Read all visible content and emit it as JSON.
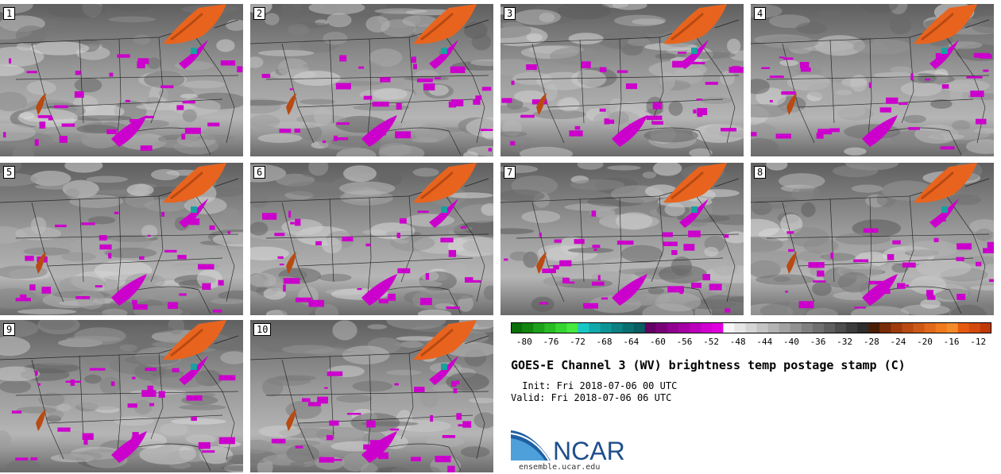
{
  "panels": [
    {
      "label": "1"
    },
    {
      "label": "2"
    },
    {
      "label": "3"
    },
    {
      "label": "4"
    },
    {
      "label": "5"
    },
    {
      "label": "6"
    },
    {
      "label": "7"
    },
    {
      "label": "8"
    },
    {
      "label": "9"
    },
    {
      "label": "10"
    }
  ],
  "colorbar": {
    "tick_labels": [
      "-80",
      "-76",
      "-72",
      "-68",
      "-64",
      "-60",
      "-56",
      "-52",
      "-48",
      "-44",
      "-40",
      "-36",
      "-32",
      "-28",
      "-24",
      "-20",
      "-16",
      "-12"
    ],
    "colors": [
      "#0a6e0a",
      "#12850f",
      "#1da01a",
      "#28bb24",
      "#37d531",
      "#47e83f",
      "#19c6c6",
      "#12a9aa",
      "#0e9396",
      "#0c8082",
      "#0a6e70",
      "#085d60",
      "#650065",
      "#7a007a",
      "#900090",
      "#a500a5",
      "#bb00bb",
      "#d000d0",
      "#e000e0",
      "#f7f7f7",
      "#e6e6e6",
      "#d5d5d5",
      "#c4c4c4",
      "#b3b3b3",
      "#a2a2a2",
      "#919191",
      "#808080",
      "#6f6f6f",
      "#5e5e5e",
      "#4d4d4d",
      "#3c3c3c",
      "#2d2d2d",
      "#4a1d05",
      "#7a2c08",
      "#9e3a0c",
      "#b84a12",
      "#cc5a16",
      "#e0691a",
      "#f07a1e",
      "#f58a2a",
      "#e55a10",
      "#d24a0c",
      "#c03a08"
    ]
  },
  "title": "GOES-E Channel 3 (WV) brightness temp postage stamp (C)",
  "init_text": " Init: Fri 2018-07-06 00 UTC",
  "valid_text": "Valid: Fri 2018-07-06 06 UTC",
  "logo": {
    "text": "NCAR",
    "url": "ensemble.ucar.edu",
    "blue": "#1f5fa3",
    "sky": "#4da0d9"
  },
  "palette": {
    "magenta": "#cc00cc",
    "orange": "#e8641e",
    "dark_orange": "#b84a12",
    "teal": "#1aa0a0"
  }
}
